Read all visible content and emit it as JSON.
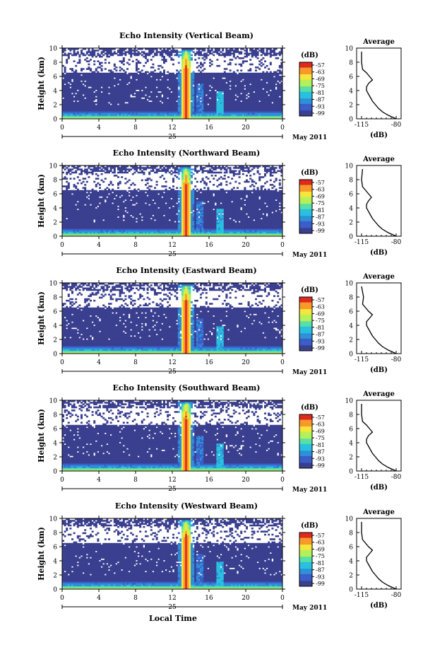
{
  "figure": {
    "bottom_xlabel": "Local Time",
    "date_label": "May 2011",
    "day_label": "25",
    "colorbar_unit": "(dB)",
    "average_title": "Average",
    "average_xlabel": "(dB)"
  },
  "colors": {
    "background_fill": "#ffffff",
    "colormap": [
      "#3a3f8f",
      "#3b5dc9",
      "#2f8fd8",
      "#29c0e0",
      "#58dfa6",
      "#b5f05a",
      "#f5e63c",
      "#f89a2a",
      "#e02a1e"
    ]
  },
  "chart_data": [
    {
      "type": "heatmap",
      "title": "Echo Intensity (Vertical Beam)",
      "ylabel": "Height (km)",
      "xlabel": "Local Time",
      "xlim": [
        0,
        24
      ],
      "ylim": [
        0,
        10
      ],
      "xticks": [
        "0",
        "4",
        "8",
        "12",
        "16",
        "20",
        "0"
      ],
      "yticks": [
        "0",
        "2",
        "4",
        "6",
        "8",
        "10"
      ],
      "colorbar": {
        "label": "(dB)",
        "ticks": [
          "-57",
          "-63",
          "-69",
          "-75",
          "-81",
          "-87",
          "-93",
          "-99"
        ]
      },
      "profile": {
        "title": "Average",
        "xlabel": "(dB)",
        "xticks": [
          "-115",
          "-80"
        ],
        "xlim": [
          -120,
          -75
        ],
        "ylim": [
          0,
          10
        ],
        "x": [
          -80,
          -88,
          -94,
          -98,
          -101,
          -104,
          -106,
          -108,
          -110,
          -110,
          -108,
          -104,
          -107,
          -110,
          -114,
          -115,
          -115
        ],
        "y": [
          0,
          0.5,
          1,
          1.5,
          2,
          2.5,
          3,
          3.5,
          4,
          4.5,
          5,
          5.5,
          6,
          6.5,
          7,
          8,
          9.5
        ]
      }
    },
    {
      "type": "heatmap",
      "title": "Echo Intensity (Northward Beam)",
      "ylabel": "Height (km)",
      "xlabel": "Local Time",
      "xlim": [
        0,
        24
      ],
      "ylim": [
        0,
        10
      ],
      "xticks": [
        "0",
        "4",
        "8",
        "12",
        "16",
        "20",
        "0"
      ],
      "yticks": [
        "0",
        "2",
        "4",
        "6",
        "8",
        "10"
      ],
      "colorbar": {
        "label": "(dB)",
        "ticks": [
          "-57",
          "-63",
          "-69",
          "-75",
          "-81",
          "-87",
          "-93",
          "-99"
        ]
      },
      "profile": {
        "title": "Average",
        "xlabel": "(dB)",
        "xticks": [
          "-115",
          "-80"
        ],
        "xlim": [
          -120,
          -75
        ],
        "ylim": [
          0,
          10
        ],
        "x": [
          -80,
          -88,
          -94,
          -98,
          -101,
          -104,
          -106,
          -108,
          -110,
          -110,
          -108,
          -105,
          -108,
          -111,
          -114,
          -115,
          -114
        ],
        "y": [
          0,
          0.5,
          1,
          1.5,
          2,
          2.5,
          3,
          3.5,
          4,
          4.5,
          5,
          5.5,
          6,
          6.5,
          7,
          8,
          9.5
        ]
      }
    },
    {
      "type": "heatmap",
      "title": "Echo Intensity (Eastward Beam)",
      "ylabel": "Height (km)",
      "xlabel": "Local Time",
      "xlim": [
        0,
        24
      ],
      "ylim": [
        0,
        10
      ],
      "xticks": [
        "0",
        "4",
        "8",
        "12",
        "16",
        "20",
        "0"
      ],
      "yticks": [
        "0",
        "2",
        "4",
        "6",
        "8",
        "10"
      ],
      "colorbar": {
        "label": "(dB)",
        "ticks": [
          "-57",
          "-63",
          "-69",
          "-75",
          "-81",
          "-87",
          "-93",
          "-99"
        ]
      },
      "profile": {
        "title": "Average",
        "xlabel": "(dB)",
        "xticks": [
          "-115",
          "-80"
        ],
        "xlim": [
          -120,
          -75
        ],
        "ylim": [
          0,
          10
        ],
        "x": [
          -80,
          -88,
          -94,
          -98,
          -101,
          -104,
          -106,
          -108,
          -110,
          -110,
          -107,
          -104,
          -108,
          -111,
          -114,
          -113,
          -115
        ],
        "y": [
          0,
          0.5,
          1,
          1.5,
          2,
          2.5,
          3,
          3.5,
          4,
          4.5,
          5,
          5.5,
          6,
          6.5,
          7,
          8,
          9.5
        ]
      }
    },
    {
      "type": "heatmap",
      "title": "Echo Intensity (Southward Beam)",
      "ylabel": "Height (km)",
      "xlabel": "Local Time",
      "xlim": [
        0,
        24
      ],
      "ylim": [
        0,
        10
      ],
      "xticks": [
        "0",
        "4",
        "8",
        "12",
        "16",
        "20",
        "0"
      ],
      "yticks": [
        "0",
        "2",
        "4",
        "6",
        "8",
        "10"
      ],
      "colorbar": {
        "label": "(dB)",
        "ticks": [
          "-57",
          "-63",
          "-69",
          "-75",
          "-81",
          "-87",
          "-93",
          "-99"
        ]
      },
      "profile": {
        "title": "Average",
        "xlabel": "(dB)",
        "xticks": [
          "-115",
          "-80"
        ],
        "xlim": [
          -120,
          -75
        ],
        "ylim": [
          0,
          10
        ],
        "x": [
          -80,
          -88,
          -94,
          -98,
          -101,
          -104,
          -106,
          -108,
          -110,
          -110,
          -108,
          -104,
          -107,
          -110,
          -114,
          -115,
          -115
        ],
        "y": [
          0,
          0.5,
          1,
          1.5,
          2,
          2.5,
          3,
          3.5,
          4,
          4.5,
          5,
          5.5,
          6,
          6.5,
          7,
          8,
          9.5
        ]
      }
    },
    {
      "type": "heatmap",
      "title": "Echo Intensity (Westward Beam)",
      "ylabel": "Height (km)",
      "xlabel": "Local Time",
      "xlim": [
        0,
        24
      ],
      "ylim": [
        0,
        10
      ],
      "xticks": [
        "0",
        "4",
        "8",
        "12",
        "16",
        "20",
        "0"
      ],
      "yticks": [
        "0",
        "2",
        "4",
        "6",
        "8",
        "10"
      ],
      "colorbar": {
        "label": "(dB)",
        "ticks": [
          "-57",
          "-63",
          "-69",
          "-75",
          "-81",
          "-87",
          "-93",
          "-99"
        ]
      },
      "profile": {
        "title": "Average",
        "xlabel": "(dB)",
        "xticks": [
          "-115",
          "-80"
        ],
        "xlim": [
          -120,
          -75
        ],
        "ylim": [
          0,
          10
        ],
        "x": [
          -80,
          -88,
          -94,
          -98,
          -101,
          -104,
          -106,
          -108,
          -110,
          -110,
          -107,
          -104,
          -108,
          -111,
          -114,
          -115,
          -115
        ],
        "y": [
          0,
          0.5,
          1,
          1.5,
          2,
          2.5,
          3,
          3.5,
          4,
          4.5,
          5,
          5.5,
          6,
          6.5,
          7,
          8,
          9.5
        ]
      }
    }
  ]
}
